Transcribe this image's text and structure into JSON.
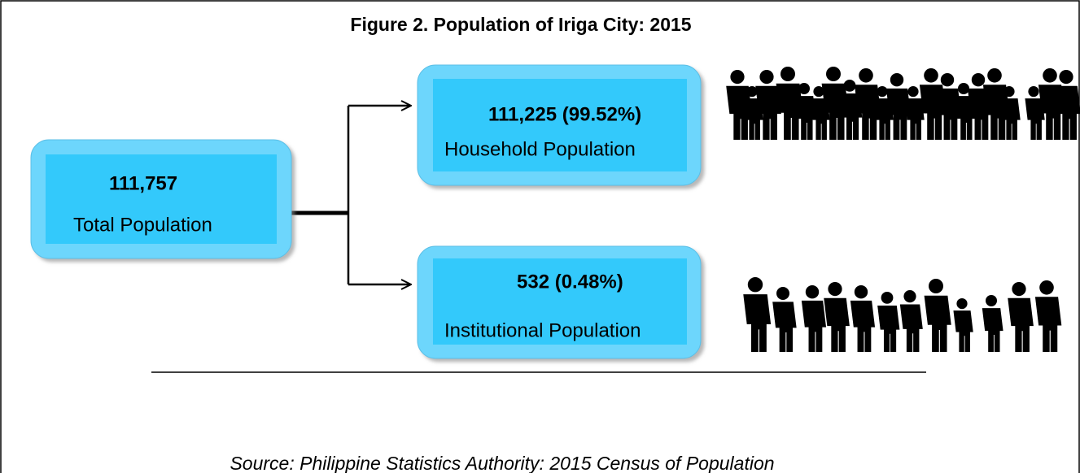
{
  "header": {
    "title": "Figure 2. Population of  Iriga City: 2015"
  },
  "nodes": [
    {
      "value": "111,757",
      "label": "Total Population"
    },
    {
      "value": "111,225 (99.52%)",
      "label": "Household  Population"
    },
    {
      "value": "532 (0.48%)",
      "label": "Institutional  Population"
    }
  ],
  "footer": {
    "source": "Source: Philippine Statistics Authority: 2015 Census of Population"
  }
}
